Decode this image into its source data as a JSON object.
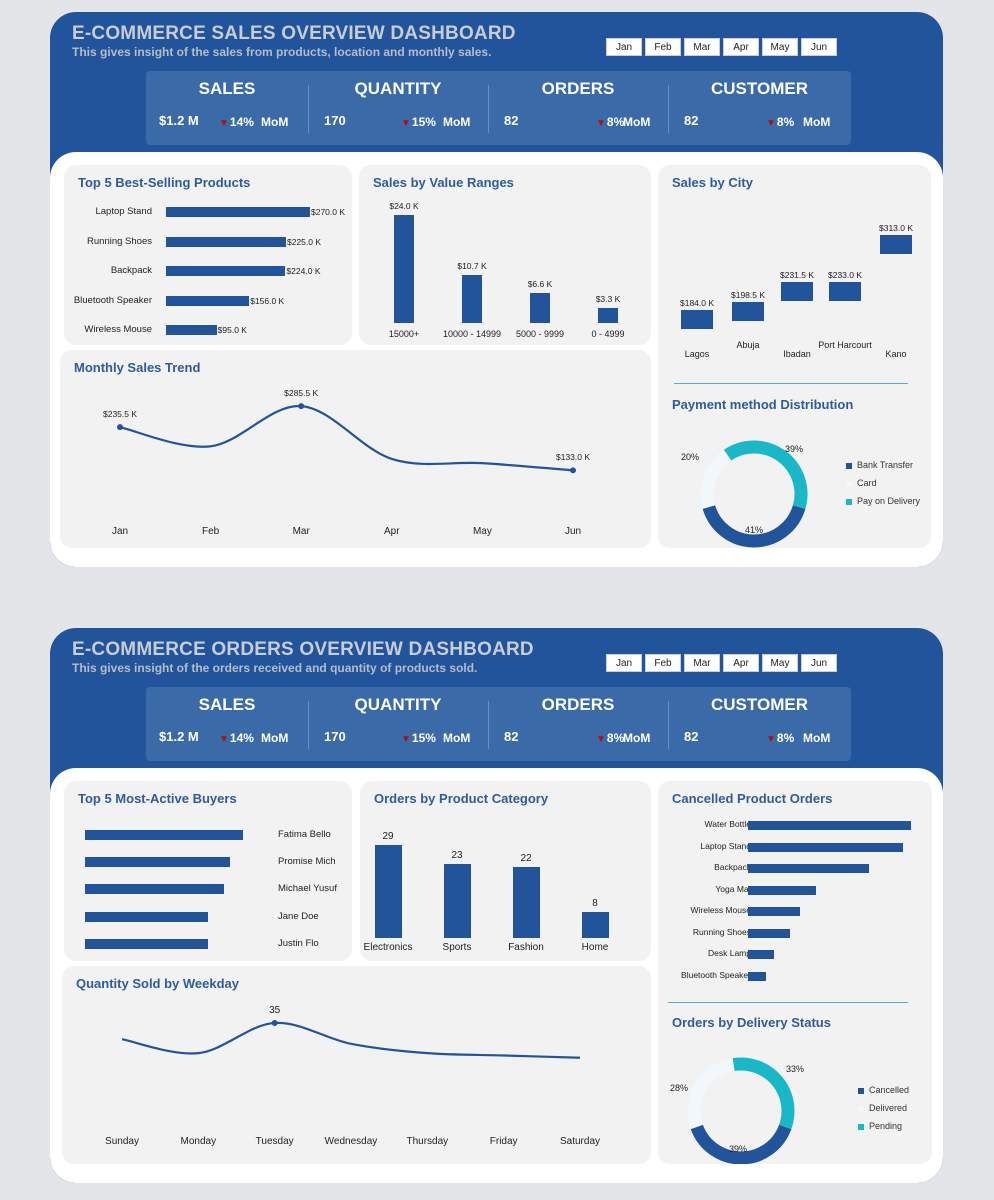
{
  "months": [
    "Jan",
    "Feb",
    "Mar",
    "Apr",
    "May",
    "Jun"
  ],
  "kpis": [
    {
      "label": "SALES",
      "value": "$1.2 M",
      "change": "14%",
      "mom": "MoM"
    },
    {
      "label": "QUANTITY",
      "value": "170",
      "change": "15%",
      "mom": "MoM"
    },
    {
      "label": "ORDERS",
      "value": "82",
      "change": "8%",
      "mom": "MoM"
    },
    {
      "label": "CUSTOMER",
      "value": "82",
      "change": "8%",
      "mom": "MoM"
    }
  ],
  "colors": {
    "primary": "#22549b",
    "teal": "#1ab7c9",
    "light": "#f2f7fc",
    "down_arrow": "#b01010"
  },
  "sales_dashboard": {
    "title": "E-COMMERCE SALES OVERVIEW DASHBOARD",
    "subtitle": "This gives insight of the sales from products, location and monthly sales."
  },
  "orders_dashboard": {
    "title": "E-COMMERCE ORDERS OVERVIEW DASHBOARD",
    "subtitle": "This gives insight of the orders received and quantity of products sold."
  },
  "chart_data": [
    {
      "id": "top_products",
      "type": "bar",
      "orientation": "horizontal",
      "title": "Top 5  Best-Selling Products",
      "categories": [
        "Laptop Stand",
        "Running Shoes",
        "Backpack",
        "Bluetooth Speaker",
        "Wireless Mouse"
      ],
      "values": [
        270.0,
        225.0,
        224.0,
        156.0,
        95.0
      ],
      "labels": [
        "$270.0 K",
        "$225.0 K",
        "$224.0 K",
        "$156.0 K",
        "$95.0 K"
      ],
      "xlim": [
        0,
        270
      ]
    },
    {
      "id": "value_ranges",
      "type": "bar",
      "title": "Sales by Value Ranges",
      "categories": [
        "15000+",
        "10000 - 14999",
        "5000 - 9999",
        "0 - 4999"
      ],
      "values": [
        24.0,
        10.7,
        6.6,
        3.3
      ],
      "labels": [
        "$24.0 K",
        "$10.7 K",
        "$6.6 K",
        "$3.3 K"
      ],
      "ylim": [
        0,
        24
      ]
    },
    {
      "id": "city_sales",
      "type": "bar",
      "title": "Sales by City",
      "categories": [
        "Lagos",
        "Abuja",
        "Ibadan",
        "Port Harcourt",
        "Kano"
      ],
      "values": [
        184.0,
        198.5,
        231.5,
        233.0,
        313.0
      ],
      "labels": [
        "$184.0 K",
        "$198.5 K",
        "$231.5 K",
        "$233.0 K",
        "$313.0 K"
      ],
      "ylim": [
        150,
        330
      ]
    },
    {
      "id": "monthly_trend",
      "type": "line",
      "title": "Monthly Sales Trend",
      "x": [
        "Jan",
        "Feb",
        "Mar",
        "Apr",
        "May",
        "Jun"
      ],
      "values": [
        235.5,
        190,
        285.5,
        160,
        150,
        133.0
      ],
      "labels": [
        "$235.5 K",
        "",
        "$285.5 K",
        "",
        "",
        "$133.0 K"
      ],
      "ylim": [
        110,
        300
      ]
    },
    {
      "id": "payment",
      "type": "pie",
      "title": "Payment method Distribution",
      "categories": [
        "Bank Transfer",
        "Card",
        "Pay on Delivery"
      ],
      "values": [
        41,
        20,
        39
      ],
      "labels": [
        "41%",
        "20%",
        "39%"
      ]
    },
    {
      "id": "top_buyers",
      "type": "bar",
      "orientation": "horizontal",
      "title": "Top 5 Most-Active Buyers",
      "categories": [
        "Fatima Bello",
        "Promise Mich",
        "Michael Yusuf",
        "Jane Doe",
        "Justin Flo"
      ],
      "values": [
        5,
        4.6,
        4.4,
        3.9,
        3.9
      ],
      "xlim": [
        0,
        5
      ]
    },
    {
      "id": "category_orders",
      "type": "bar",
      "title": "Orders by Product Category",
      "categories": [
        "Electronics",
        "Sports",
        "Fashion",
        "Home"
      ],
      "values": [
        29,
        23,
        22,
        8
      ],
      "labels": [
        "29",
        "23",
        "22",
        "8"
      ],
      "ylim": [
        0,
        29
      ]
    },
    {
      "id": "cancelled",
      "type": "bar",
      "orientation": "horizontal",
      "title": "Cancelled Product Orders",
      "categories": [
        "Water Bottle",
        "Laptop Stand",
        "Backpack",
        "Yoga Mat",
        "Wireless Mouse",
        "Running Shoes",
        "Desk Lamp",
        "Bluetooth Speaker"
      ],
      "values": [
        10,
        9.5,
        7.4,
        4.2,
        3.2,
        2.6,
        1.6,
        1.1
      ],
      "xlim": [
        0,
        10
      ]
    },
    {
      "id": "weekday_qty",
      "type": "line",
      "title": "Quantity Sold by Weekday",
      "x": [
        "Sunday",
        "Monday",
        "Tuesday",
        "Wednesday",
        "Thursday",
        "Friday",
        "Saturday"
      ],
      "values": [
        28,
        22,
        35,
        26,
        22,
        21,
        20
      ],
      "labels": [
        "",
        "",
        "35",
        "",
        "",
        "",
        ""
      ],
      "ylim": [
        10,
        38
      ]
    },
    {
      "id": "delivery",
      "type": "pie",
      "title": "Orders by Delivery Status",
      "categories": [
        "Cancelled",
        "Delivered",
        "Pending"
      ],
      "values": [
        39,
        28,
        33
      ],
      "labels": [
        "39%",
        "28%",
        "33%"
      ]
    }
  ]
}
